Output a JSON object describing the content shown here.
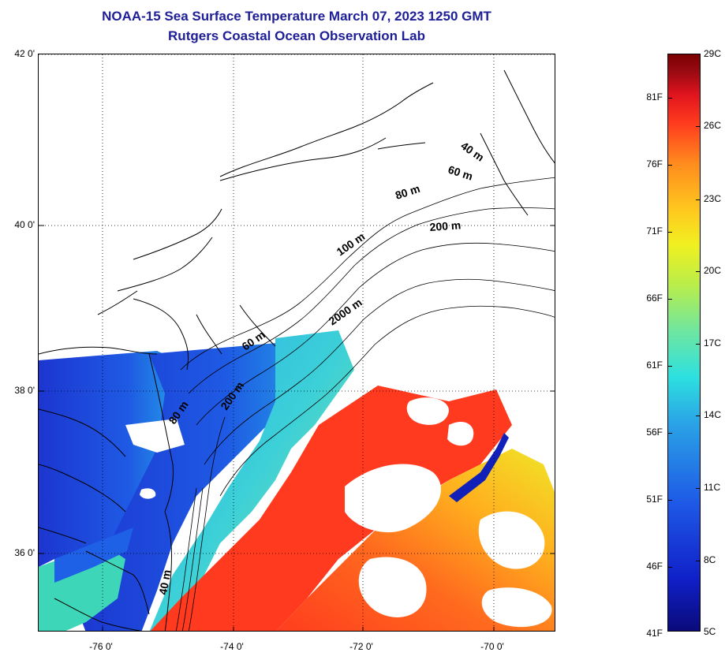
{
  "title": {
    "line1": "NOAA-15 Sea Surface Temperature March 07, 2023 1250 GMT",
    "line2": "Rutgers Coastal Ocean Observation Lab"
  },
  "map": {
    "lat_ticks": [
      "42 0'",
      "40 0'",
      "38 0'",
      "36 0'"
    ],
    "lon_ticks": [
      "-76 0'",
      "-74 0'",
      "-72 0'",
      "-70 0'"
    ],
    "depth_contour_labels": [
      "40 m",
      "60 m",
      "80 m",
      "200 m",
      "100 m",
      "2000 m",
      "60 m",
      "80 m",
      "200 m",
      "40 m"
    ],
    "colors": {
      "land": "#ffffff",
      "cloud_mask": "#ffffff",
      "coastline": "#000000",
      "gridline": "#000000"
    }
  },
  "colorbar": {
    "celsius": [
      "29C",
      "26C",
      "23C",
      "20C",
      "17C",
      "14C",
      "11C",
      "8C",
      "5C"
    ],
    "fahrenheit": [
      "81F",
      "76F",
      "71F",
      "66F",
      "61F",
      "56F",
      "51F",
      "46F",
      "41F"
    ]
  }
}
